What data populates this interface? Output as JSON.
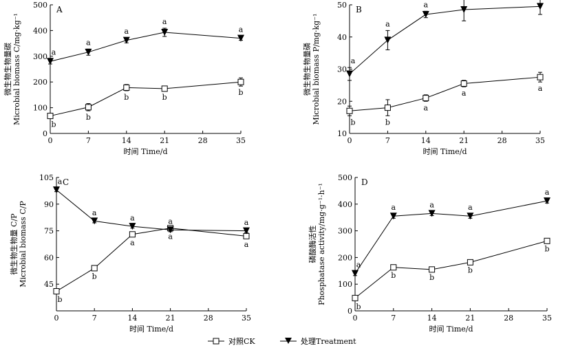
{
  "legend": {
    "ck": "对照CK",
    "treatment": "处理Treatment"
  },
  "chart_data": [
    {
      "type": "line",
      "panel": "A",
      "x": [
        0,
        7,
        14,
        21,
        35
      ],
      "xticks": [
        0,
        7,
        14,
        21,
        28,
        35
      ],
      "xlim": [
        0,
        35
      ],
      "xlabel": "时间 Time/d",
      "ylabel": [
        "微生物生物量碳",
        "Microbial biomass C/mg·kg⁻¹"
      ],
      "ylim": [
        0,
        500
      ],
      "yticks": [
        0,
        100,
        200,
        300,
        400,
        500
      ],
      "series": [
        {
          "name": "对照CK",
          "marker": "square",
          "values": [
            68,
            102,
            178,
            174,
            200
          ],
          "err": [
            8,
            14,
            12,
            8,
            16
          ],
          "labels": [
            "b",
            "b",
            "b",
            "b",
            "b"
          ]
        },
        {
          "name": "处理Treatment",
          "marker": "triangle",
          "values": [
            280,
            316,
            362,
            393,
            370
          ],
          "err": [
            10,
            12,
            10,
            16,
            8
          ],
          "labels": [
            "a",
            "a",
            "a",
            "a",
            "a"
          ]
        }
      ]
    },
    {
      "type": "line",
      "panel": "B",
      "x": [
        0,
        7,
        14,
        21,
        35
      ],
      "xticks": [
        0,
        7,
        14,
        21,
        28,
        35
      ],
      "xlim": [
        0,
        35
      ],
      "xlabel": "时间 Time/d",
      "ylabel": [
        "微生物生物量磷",
        "Microbial biomass P/mg·kg⁻¹"
      ],
      "ylim": [
        10,
        50
      ],
      "yticks": [
        10,
        20,
        30,
        40,
        50
      ],
      "series": [
        {
          "name": "对照CK",
          "marker": "square",
          "values": [
            17,
            18,
            21,
            25.5,
            27.5
          ],
          "err": [
            1.5,
            2.5,
            1,
            1,
            1.5
          ],
          "labels": [
            "b",
            "b",
            "a",
            "a",
            "a"
          ]
        },
        {
          "name": "处理Treatment",
          "marker": "triangle",
          "values": [
            28.5,
            39,
            47,
            48.5,
            49.5
          ],
          "err": [
            2,
            3,
            1,
            3.5,
            2.5
          ],
          "labels": [
            "a",
            "a",
            "a",
            "a",
            "a"
          ]
        }
      ]
    },
    {
      "type": "line",
      "panel": "C",
      "x": [
        0,
        7,
        14,
        21,
        35
      ],
      "xticks": [
        0,
        7,
        14,
        21,
        28,
        35
      ],
      "xlim": [
        0,
        35
      ],
      "xlabel": "时间 Time/d",
      "ylabel": [
        "微生物生物量 C/P",
        "Microbial biomass C/P"
      ],
      "ylim": [
        30,
        105
      ],
      "yticks": [
        45,
        60,
        75,
        90,
        105
      ],
      "series": [
        {
          "name": "对照CK",
          "marker": "square",
          "values": [
            41,
            54,
            73,
            76.5,
            72
          ],
          "err": [
            1,
            1,
            1,
            1,
            1
          ],
          "labels": [
            "b",
            "b",
            "a",
            "a",
            "a"
          ]
        },
        {
          "name": "处理Treatment",
          "marker": "triangle",
          "values": [
            98,
            80.5,
            77.5,
            75.5,
            75
          ],
          "err": [
            1,
            1,
            1,
            1,
            1
          ],
          "labels": [
            "a",
            "a",
            "a",
            "a",
            "a"
          ]
        }
      ]
    },
    {
      "type": "line",
      "panel": "D",
      "x": [
        0,
        7,
        14,
        21,
        35
      ],
      "xticks": [
        0,
        7,
        14,
        21,
        28,
        35
      ],
      "xlim": [
        0,
        35
      ],
      "xlabel": "时间 Time/d",
      "ylabel": [
        "磷酸酶活性",
        "Phosphatase activity/mg·g⁻¹·h⁻¹"
      ],
      "ylim": [
        0,
        500
      ],
      "yticks": [
        0,
        100,
        200,
        300,
        400,
        500
      ],
      "series": [
        {
          "name": "对照CK",
          "marker": "square",
          "values": [
            48,
            163,
            155,
            182,
            262
          ],
          "err": [
            8,
            6,
            6,
            6,
            6
          ],
          "labels": [
            "b",
            "b",
            "b",
            "b",
            "b"
          ]
        },
        {
          "name": "处理Treatment",
          "marker": "triangle",
          "values": [
            140,
            355,
            365,
            355,
            412
          ],
          "err": [
            8,
            8,
            8,
            8,
            8
          ],
          "labels": [
            "a",
            "a",
            "a",
            "a",
            "a"
          ]
        }
      ]
    }
  ]
}
